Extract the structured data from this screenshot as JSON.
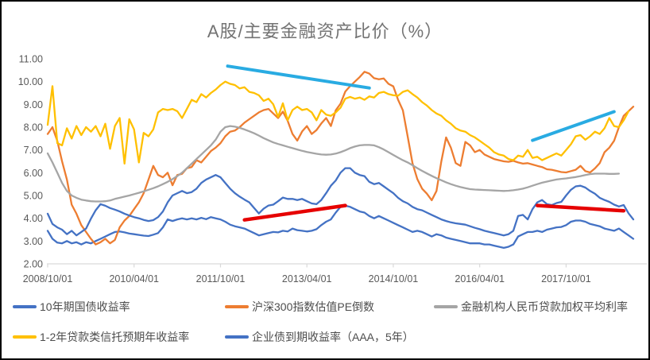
{
  "title": "A股/主要金融资产比价（%）",
  "colors": {
    "axis_line": "#D9D9D9",
    "tick_label": "#595959",
    "title_text": "#737373",
    "legend_text": "#4D4D4D",
    "frame_border": "#000000",
    "background": "#FFFFFF",
    "trend_cyan": "#29ABE2",
    "trend_red": "#E60000"
  },
  "chart_data": {
    "type": "line",
    "title": "A股/主要金融资产比价（%）",
    "xlabel": "",
    "ylabel": "",
    "x_start": "2008/10",
    "x_end": "2018/12",
    "x_unit": "month",
    "ylim": [
      2,
      11
    ],
    "grid": false,
    "legend_position": "bottom",
    "y_ticks": [
      {
        "value": 11,
        "label": "11.00"
      },
      {
        "value": 10,
        "label": "10.00"
      },
      {
        "value": 9,
        "label": "9.00"
      },
      {
        "value": 8,
        "label": "8.00"
      },
      {
        "value": 7,
        "label": "7.00"
      },
      {
        "value": 6,
        "label": "6.00"
      },
      {
        "value": 5,
        "label": "5.00"
      },
      {
        "value": 4,
        "label": "4.00"
      },
      {
        "value": 3,
        "label": "3.00"
      },
      {
        "value": 2,
        "label": "2.00"
      }
    ],
    "x_ticks": [
      {
        "month": 0,
        "label": "2008/10/01"
      },
      {
        "month": 18,
        "label": "2010/04/01"
      },
      {
        "month": 36,
        "label": "2011/10/01"
      },
      {
        "month": 54,
        "label": "2013/04/01"
      },
      {
        "month": 72,
        "label": "2014/10/01"
      },
      {
        "month": 90,
        "label": "2016/04/01"
      },
      {
        "month": 108,
        "label": "2017/10/01"
      }
    ],
    "series": [
      {
        "name": "10年期国债收益率",
        "color": "#4472C4",
        "start_month": "2008/10",
        "values": [
          3.45,
          3.1,
          2.93,
          2.9,
          3.0,
          2.9,
          2.95,
          2.85,
          2.95,
          2.9,
          3.0,
          3.1,
          3.2,
          3.3,
          3.4,
          3.42,
          3.38,
          3.33,
          3.3,
          3.27,
          3.24,
          3.22,
          3.28,
          3.35,
          3.6,
          3.95,
          3.88,
          3.95,
          4.0,
          3.95,
          4.0,
          3.95,
          4.02,
          3.96,
          4.05,
          4.0,
          3.95,
          3.85,
          3.72,
          3.65,
          3.6,
          3.55,
          3.45,
          3.35,
          3.25,
          3.3,
          3.35,
          3.4,
          3.38,
          3.45,
          3.42,
          3.55,
          3.48,
          3.45,
          3.42,
          3.45,
          3.52,
          3.7,
          3.85,
          3.95,
          4.25,
          4.5,
          4.55,
          4.5,
          4.4,
          4.3,
          4.25,
          4.1,
          4.0,
          4.1,
          4.0,
          3.9,
          3.8,
          3.7,
          3.6,
          3.5,
          3.4,
          3.45,
          3.4,
          3.3,
          3.2,
          3.3,
          3.25,
          3.15,
          3.1,
          3.05,
          3.0,
          2.95,
          2.9,
          2.9,
          2.9,
          2.85,
          2.85,
          2.8,
          2.75,
          2.7,
          2.75,
          2.85,
          3.2,
          3.3,
          3.4,
          3.4,
          3.45,
          3.4,
          3.5,
          3.55,
          3.6,
          3.62,
          3.7,
          3.85,
          3.9,
          3.9,
          3.85,
          3.75,
          3.7,
          3.65,
          3.55,
          3.5,
          3.45,
          3.55,
          3.4,
          3.25,
          3.1
        ]
      },
      {
        "name": "沪深300指数估值PE倒数",
        "color": "#ED7D31",
        "start_month": "2008/10",
        "values": [
          7.7,
          8.0,
          7.4,
          6.5,
          5.7,
          4.6,
          4.2,
          3.7,
          3.4,
          3.1,
          2.85,
          2.95,
          3.1,
          2.9,
          3.05,
          3.6,
          3.9,
          4.1,
          4.4,
          4.7,
          5.1,
          5.7,
          6.3,
          5.9,
          5.8,
          6.0,
          5.45,
          5.9,
          5.95,
          6.2,
          6.25,
          6.55,
          6.45,
          6.7,
          6.95,
          7.1,
          7.3,
          7.6,
          7.8,
          7.85,
          8.0,
          8.2,
          8.35,
          8.5,
          8.65,
          8.75,
          8.8,
          8.6,
          8.4,
          8.68,
          8.28,
          7.7,
          7.41,
          7.81,
          8.05,
          7.7,
          7.87,
          8.16,
          8.4,
          8.05,
          8.74,
          9.03,
          9.56,
          9.8,
          10.0,
          10.2,
          10.43,
          10.35,
          10.15,
          10.1,
          10.14,
          9.9,
          9.79,
          9.2,
          8.74,
          7.58,
          6.42,
          5.72,
          5.3,
          5.08,
          4.79,
          5.2,
          6.5,
          7.55,
          7.1,
          6.42,
          6.3,
          7.35,
          7.2,
          6.9,
          7.0,
          6.8,
          6.7,
          6.6,
          6.55,
          6.5,
          6.48,
          6.52,
          6.45,
          6.4,
          6.42,
          6.36,
          6.3,
          6.25,
          6.15,
          6.13,
          6.08,
          6.03,
          6.01,
          6.07,
          6.13,
          6.3,
          6.07,
          6.01,
          6.19,
          6.42,
          6.9,
          7.1,
          7.4,
          8.0,
          8.5,
          8.7,
          8.9
        ]
      },
      {
        "name": "金融机构人民币贷款加权平均利率",
        "color": "#A5A5A5",
        "start_month": "2008/10",
        "values": [
          6.85,
          6.45,
          6.0,
          5.55,
          5.2,
          5.0,
          4.9,
          4.82,
          4.78,
          4.75,
          4.74,
          4.74,
          4.75,
          4.78,
          4.85,
          4.9,
          4.95,
          5.0,
          5.06,
          5.12,
          5.18,
          5.25,
          5.32,
          5.4,
          5.5,
          5.6,
          5.72,
          5.85,
          6.0,
          6.2,
          6.4,
          6.6,
          6.8,
          7.0,
          7.2,
          7.45,
          7.8,
          8.0,
          8.05,
          8.02,
          7.97,
          7.9,
          7.82,
          7.73,
          7.63,
          7.52,
          7.42,
          7.33,
          7.26,
          7.2,
          7.14,
          7.08,
          7.02,
          6.96,
          6.91,
          6.87,
          6.83,
          6.8,
          6.79,
          6.8,
          6.84,
          6.9,
          6.98,
          7.08,
          7.15,
          7.2,
          7.22,
          7.22,
          7.2,
          7.12,
          7.02,
          6.9,
          6.78,
          6.66,
          6.55,
          6.45,
          6.33,
          6.2,
          6.08,
          5.97,
          5.86,
          5.76,
          5.67,
          5.58,
          5.5,
          5.43,
          5.37,
          5.32,
          5.28,
          5.26,
          5.25,
          5.24,
          5.23,
          5.22,
          5.21,
          5.2,
          5.21,
          5.23,
          5.26,
          5.3,
          5.36,
          5.43,
          5.5,
          5.56,
          5.61,
          5.66,
          5.7,
          5.73,
          5.75,
          5.78,
          5.81,
          5.85,
          5.9,
          5.94,
          5.96,
          5.96,
          5.96,
          5.95,
          5.95,
          5.96
        ]
      },
      {
        "name": "1-2年贷款类信托预期年收益率",
        "color": "#FFC000",
        "start_month": "2008/10",
        "values": [
          8.1,
          9.8,
          7.3,
          7.2,
          7.95,
          7.5,
          8.05,
          7.65,
          8.0,
          7.8,
          8.05,
          7.6,
          8.15,
          7.05,
          8.05,
          8.4,
          6.4,
          8.35,
          7.9,
          6.45,
          7.75,
          7.6,
          7.9,
          8.65,
          8.8,
          8.75,
          8.8,
          8.7,
          8.4,
          8.8,
          9.2,
          9.1,
          9.45,
          9.3,
          9.5,
          9.65,
          9.85,
          10.0,
          9.9,
          9.85,
          9.7,
          9.75,
          9.55,
          9.5,
          9.4,
          9.15,
          9.25,
          9.0,
          8.45,
          9.05,
          8.3,
          8.75,
          8.9,
          8.75,
          8.8,
          8.65,
          8.3,
          8.75,
          8.55,
          8.5,
          8.65,
          8.85,
          9.25,
          9.33,
          9.25,
          9.3,
          9.2,
          9.35,
          9.3,
          9.5,
          9.55,
          9.45,
          9.4,
          9.38,
          9.55,
          9.62,
          9.45,
          9.3,
          9.1,
          8.95,
          8.75,
          8.6,
          8.5,
          8.3,
          8.15,
          7.95,
          7.85,
          7.8,
          7.65,
          7.55,
          7.4,
          7.25,
          7.1,
          6.9,
          6.8,
          6.75,
          6.6,
          6.55,
          6.75,
          6.7,
          7.0,
          6.65,
          6.7,
          6.55,
          6.65,
          6.75,
          6.85,
          6.75,
          7.0,
          7.25,
          7.6,
          7.65,
          7.45,
          7.6,
          7.8,
          7.7,
          7.95,
          8.4,
          8.05,
          8.0,
          8.3,
          8.7
        ]
      },
      {
        "name": "企业债到期收益率（AAA，5年）",
        "color": "#4472C4",
        "start_month": "2008/10",
        "values": [
          4.2,
          3.75,
          3.6,
          3.5,
          3.3,
          3.45,
          3.25,
          3.4,
          3.55,
          3.98,
          4.35,
          4.62,
          4.55,
          4.45,
          4.38,
          4.3,
          4.2,
          4.12,
          4.05,
          4.0,
          3.93,
          3.88,
          3.92,
          4.05,
          4.3,
          4.7,
          5.0,
          5.1,
          5.2,
          5.1,
          5.15,
          5.3,
          5.55,
          5.7,
          5.8,
          5.9,
          5.8,
          5.55,
          5.3,
          5.1,
          4.95,
          4.82,
          4.7,
          4.45,
          4.21,
          4.42,
          4.56,
          4.6,
          4.75,
          4.91,
          4.85,
          4.85,
          4.8,
          4.85,
          4.75,
          4.65,
          4.62,
          4.8,
          5.1,
          5.43,
          5.66,
          6.0,
          6.2,
          6.2,
          6.0,
          5.9,
          5.85,
          5.6,
          5.5,
          5.55,
          5.4,
          5.25,
          5.1,
          4.9,
          4.75,
          4.65,
          4.5,
          4.4,
          4.35,
          4.25,
          4.15,
          4.05,
          3.95,
          3.88,
          3.82,
          3.78,
          3.75,
          3.72,
          3.65,
          3.58,
          3.52,
          3.45,
          3.4,
          3.35,
          3.3,
          3.25,
          3.3,
          3.45,
          4.1,
          4.15,
          3.95,
          4.4,
          4.7,
          4.8,
          4.62,
          4.58,
          4.67,
          4.72,
          5.0,
          5.25,
          5.4,
          5.43,
          5.35,
          5.2,
          5.08,
          4.9,
          4.8,
          4.72,
          4.6,
          4.52,
          4.58,
          4.22,
          3.95
        ]
      }
    ],
    "annotations": [
      {
        "name": "trendline-cyan-down-2011-2014",
        "color": "#29ABE2",
        "width": 4,
        "from_month": 37.5,
        "from_value": 10.68,
        "to_month": 67,
        "to_value": 9.72
      },
      {
        "name": "trendline-cyan-up-2017-2018",
        "color": "#29ABE2",
        "width": 4,
        "from_month": 101,
        "from_value": 7.42,
        "to_month": 118,
        "to_value": 8.68
      },
      {
        "name": "trendline-red-up-2012-2013",
        "color": "#E60000",
        "width": 4.5,
        "from_month": 41,
        "from_value": 3.93,
        "to_month": 62,
        "to_value": 4.56
      },
      {
        "name": "trendline-red-down-2017-2018",
        "color": "#E60000",
        "width": 4.5,
        "from_month": 102,
        "from_value": 4.56,
        "to_month": 120,
        "to_value": 4.33
      }
    ]
  },
  "legend": {
    "rows": [
      [
        0,
        1,
        2
      ],
      [
        3,
        4
      ]
    ]
  }
}
